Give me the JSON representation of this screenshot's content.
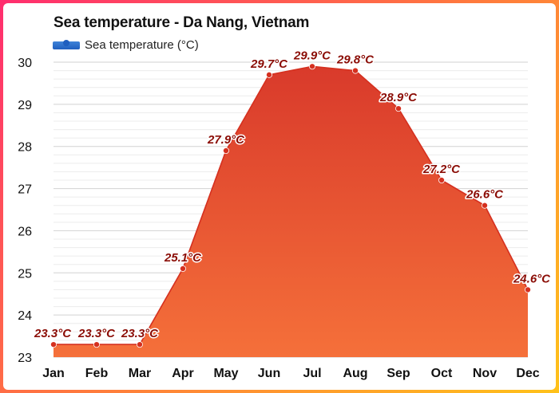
{
  "chart_data": {
    "type": "area",
    "title": "Sea temperature - Da Nang, Vietnam",
    "categories": [
      "Jan",
      "Feb",
      "Mar",
      "Apr",
      "May",
      "Jun",
      "Jul",
      "Aug",
      "Sep",
      "Oct",
      "Nov",
      "Dec"
    ],
    "series": [
      {
        "name": "Sea temperature (°C)",
        "values": [
          23.3,
          23.3,
          23.3,
          25.1,
          27.9,
          29.7,
          29.9,
          29.8,
          28.9,
          27.2,
          26.6,
          24.6
        ],
        "labels": [
          "23.3°C",
          "23.3°C",
          "23.3°C",
          "25.1°C",
          "27.9°C",
          "29.7°C",
          "29.9°C",
          "29.8°C",
          "28.9°C",
          "27.2°C",
          "26.6°C",
          "24.6°C"
        ]
      }
    ],
    "ylim": [
      23,
      30
    ],
    "yticks": [
      "23",
      "24",
      "25",
      "26",
      "27",
      "28",
      "29",
      "30"
    ],
    "xlabel": "",
    "ylabel": "",
    "grid": true,
    "legend": "top-left",
    "colors": {
      "line": "#d5301f",
      "fill_top": "#d93a2b",
      "fill_bottom": "#f5703a",
      "label": "#8b0d06",
      "legend": "#1f5fbf"
    }
  }
}
